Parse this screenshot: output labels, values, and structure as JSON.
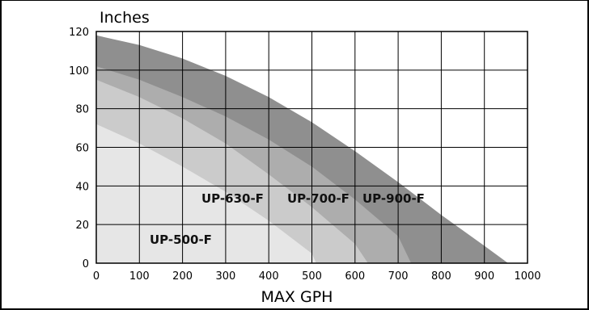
{
  "chart_data": {
    "type": "area",
    "xlabel": "MAX GPH",
    "ylabel": "Inches",
    "xlim": [
      0,
      1000
    ],
    "ylim": [
      0,
      120
    ],
    "x_ticks": [
      "0",
      "100",
      "200",
      "300",
      "400",
      "500",
      "600",
      "700",
      "800",
      "900",
      "1000"
    ],
    "y_ticks": [
      "0",
      "20",
      "40",
      "60",
      "80",
      "100",
      "120"
    ],
    "grid": true,
    "series": [
      {
        "name": "UP-900-F",
        "color": "#8f8f8f",
        "values": [
          [
            0,
            118
          ],
          [
            100,
            113
          ],
          [
            200,
            106
          ],
          [
            300,
            97
          ],
          [
            400,
            86
          ],
          [
            500,
            73
          ],
          [
            600,
            58
          ],
          [
            700,
            42
          ],
          [
            800,
            25
          ],
          [
            900,
            9
          ],
          [
            955,
            0
          ]
        ]
      },
      {
        "name": "UP-700-F",
        "color": "#adadad",
        "values": [
          [
            0,
            102
          ],
          [
            100,
            95
          ],
          [
            200,
            86
          ],
          [
            300,
            76
          ],
          [
            400,
            64
          ],
          [
            500,
            50
          ],
          [
            600,
            33
          ],
          [
            700,
            14
          ],
          [
            730,
            0
          ]
        ]
      },
      {
        "name": "UP-630-F",
        "color": "#cbcbcb",
        "values": [
          [
            0,
            95
          ],
          [
            100,
            86
          ],
          [
            200,
            75
          ],
          [
            300,
            62
          ],
          [
            400,
            46
          ],
          [
            500,
            29
          ],
          [
            600,
            10
          ],
          [
            630,
            0
          ]
        ]
      },
      {
        "name": "UP-500-F",
        "color": "#e6e6e6",
        "values": [
          [
            0,
            72
          ],
          [
            100,
            62
          ],
          [
            200,
            50
          ],
          [
            300,
            37
          ],
          [
            400,
            22
          ],
          [
            500,
            5
          ],
          [
            510,
            0
          ]
        ]
      }
    ]
  }
}
